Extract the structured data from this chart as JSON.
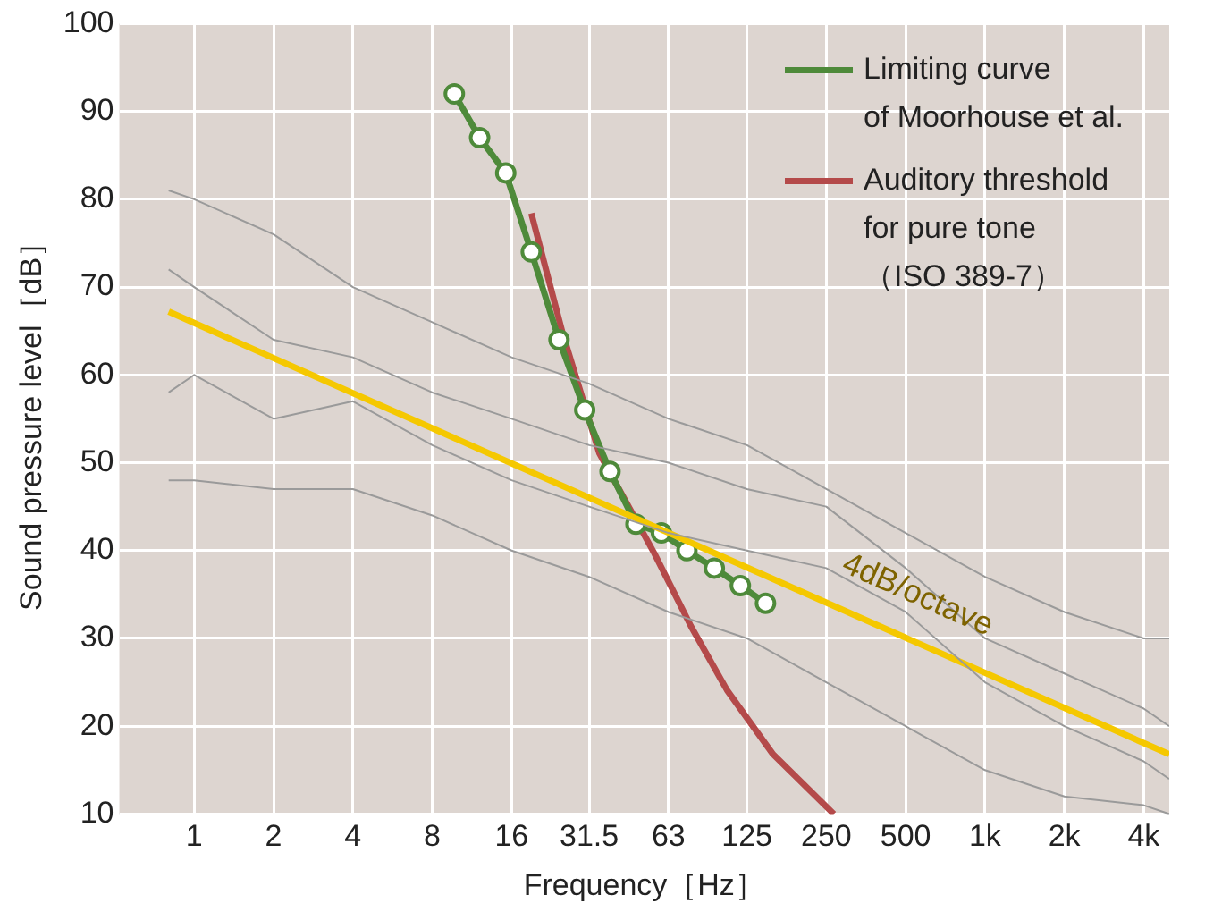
{
  "chart_data": {
    "type": "line",
    "xlabel": "Frequency［Hz］",
    "ylabel": "Sound pressure level［dB］",
    "log": "x",
    "xlim": [
      0.52,
      5000
    ],
    "ylim": [
      10,
      100
    ],
    "xticks": [
      1,
      2,
      4,
      8,
      16,
      {
        "value": 31.5,
        "label": "31.5"
      },
      63,
      125,
      250,
      500,
      {
        "value": 1000,
        "label": "1k"
      },
      {
        "value": 2000,
        "label": "2k"
      },
      {
        "value": 4000,
        "label": "4k"
      }
    ],
    "yticks": [
      10,
      20,
      30,
      40,
      50,
      60,
      70,
      80,
      90,
      100
    ],
    "grid": true,
    "legend": "top right",
    "line_style": "solid",
    "series": [
      {
        "color": "#9a9a9a",
        "marker": "none",
        "x": [
          0.8,
          1,
          2,
          4,
          8,
          16,
          31.5,
          63,
          125,
          250,
          500,
          1000,
          2000,
          4000,
          5000
        ],
        "values": [
          81,
          80,
          76,
          70,
          66,
          62,
          59,
          55,
          52,
          47,
          42,
          37,
          33,
          30,
          30
        ]
      },
      {
        "color": "#9a9a9a",
        "marker": "none",
        "x": [
          0.8,
          1,
          2,
          4,
          8,
          16,
          31.5,
          63,
          125,
          250,
          500,
          1000,
          2000,
          4000,
          5000
        ],
        "values": [
          72,
          70,
          64,
          62,
          58,
          55,
          52,
          50,
          47,
          45,
          38,
          30,
          26,
          22,
          20
        ]
      },
      {
        "color": "#9a9a9a",
        "marker": "none",
        "x": [
          0.8,
          1,
          2,
          4,
          8,
          16,
          31.5,
          63,
          125,
          250,
          500,
          1000,
          2000,
          4000,
          5000
        ],
        "values": [
          58,
          60,
          55,
          57,
          52,
          48,
          45,
          42,
          40,
          38,
          33,
          25,
          20,
          16,
          14
        ]
      },
      {
        "color": "#9a9a9a",
        "marker": "none",
        "x": [
          0.8,
          1,
          2,
          4,
          8,
          16,
          31.5,
          63,
          125,
          250,
          500,
          1000,
          2000,
          4000,
          5000
        ],
        "values": [
          48,
          48,
          47,
          47,
          44,
          40,
          37,
          33,
          30,
          25,
          20,
          15,
          12,
          11,
          10
        ]
      },
      {
        "color": "#f5c800",
        "marker": "none",
        "x": [
          0.8,
          5000
        ],
        "values": [
          67.2,
          16.8
        ]
      },
      {
        "name": "Limiting curve\nof Moorhouse et al.",
        "color": "#4e8a3a",
        "marker": "circle",
        "x": [
          9.7,
          12.1,
          15.2,
          19,
          24.2,
          30.3,
          37.8,
          47.4,
          59.2,
          74,
          94,
          118,
          147
        ],
        "values": [
          92,
          87,
          83,
          74,
          64,
          56,
          49,
          43,
          42,
          40,
          38,
          36,
          34
        ]
      },
      {
        "name": "Auditory threshold\nfor pure tone\n（ISO 389-7）",
        "color": "#b44a4a",
        "marker": "none",
        "x": [
          19,
          25,
          34.4,
          55.6,
          76.6,
          105,
          157,
          267
        ],
        "values": [
          78.4,
          64.7,
          51.1,
          39.7,
          31.4,
          24.1,
          16.8,
          10
        ]
      }
    ],
    "annotations": [
      {
        "text": "4dB/octave",
        "x": 523,
        "y": 32.4
      }
    ]
  }
}
